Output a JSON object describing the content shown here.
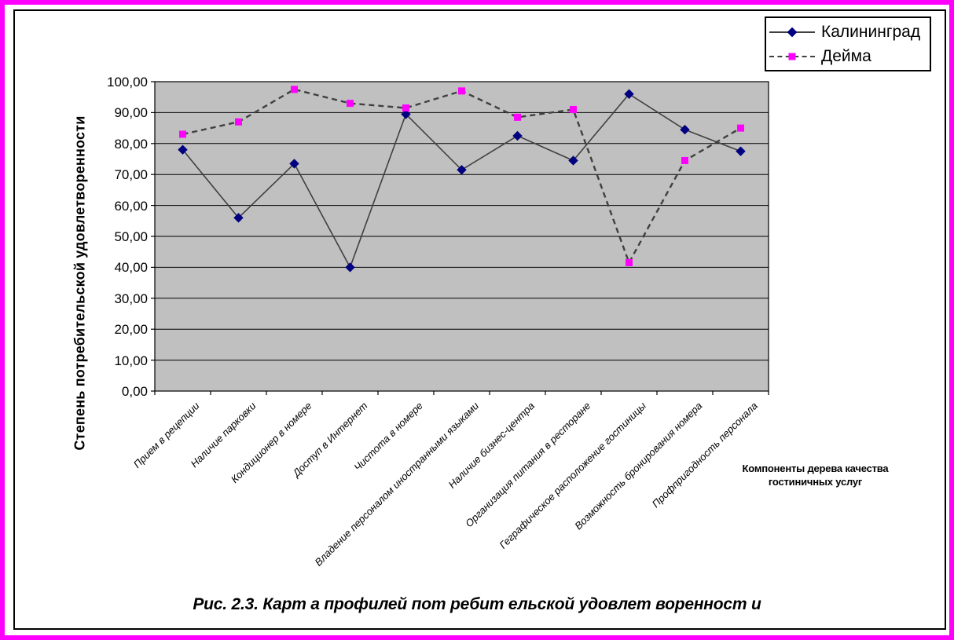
{
  "frame": {
    "border_color": "#FF00FF",
    "inner_line_color": "#000000"
  },
  "legend": {
    "items": [
      {
        "label": "Калининград",
        "marker": "diamond",
        "marker_color": "#000080",
        "line": "solid",
        "line_color": "#404040"
      },
      {
        "label": "Дейма",
        "marker": "square",
        "marker_color": "#FF00FF",
        "line": "dashed",
        "line_color": "#404040"
      }
    ]
  },
  "chart_data": {
    "type": "line",
    "title": "",
    "ylabel": "Степень потребительской удовлетворенности",
    "xlabel": "Компоненты дерева качества гостиничных услуг",
    "xlabel_lines": [
      "Компоненты дерева качества",
      "гостиничных услуг"
    ],
    "categories": [
      "Прием в рецепции",
      "Наличие парковки",
      "Кондиционер в номере",
      "Доступ в Интернет",
      "Чистота в номере",
      "Владение персоналом иностранными языками",
      "Наличие бизнес-центра",
      "Организация питания в ресторане",
      "Геграфическое расположение гостиницы",
      "Возможность бронирования номера",
      "Профпригодность персонала"
    ],
    "series": [
      {
        "name": "Калининград",
        "marker": "diamond",
        "marker_color": "#000080",
        "line_style": "solid",
        "line_color": "#404040",
        "values": [
          78,
          56,
          73.5,
          40,
          89.5,
          71.5,
          82.5,
          74.5,
          96,
          84.5,
          77.5
        ]
      },
      {
        "name": "Дейма",
        "marker": "square",
        "marker_color": "#FF00FF",
        "line_style": "dashed",
        "line_color": "#404040",
        "values": [
          83,
          87,
          97.5,
          93,
          91.5,
          97,
          88.5,
          91,
          41.5,
          74.5,
          85
        ]
      }
    ],
    "ylim": [
      0,
      100
    ],
    "ytick_step": 10,
    "ytick_labels": [
      "0,00",
      "10,00",
      "20,00",
      "30,00",
      "40,00",
      "50,00",
      "60,00",
      "70,00",
      "80,00",
      "90,00",
      "100,00"
    ],
    "grid": true,
    "grid_color": "#000000",
    "plot_bg": "#C0C0C0",
    "legend_position": "top-right"
  },
  "caption": {
    "text": "Рис. 2.3. Карт а профилей пот ребит ельской удовлет воренност и"
  }
}
